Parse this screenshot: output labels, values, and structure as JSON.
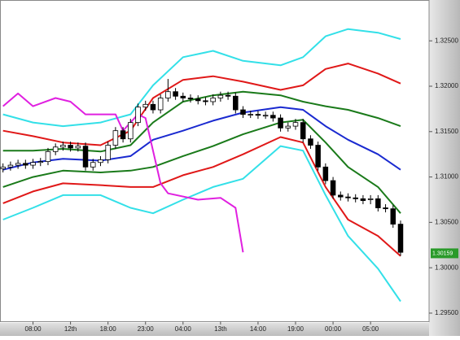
{
  "chart_data": {
    "type": "candlestick",
    "xlim": [
      -0.4,
      56.8
    ],
    "ylim": [
      1.2941,
      1.3295
    ],
    "xticks": [
      {
        "value": 4,
        "label": "08:00"
      },
      {
        "value": 9,
        "label": "12th"
      },
      {
        "value": 14,
        "label": "18:00"
      },
      {
        "value": 19,
        "label": "23:00"
      },
      {
        "value": 24,
        "label": "04:00"
      },
      {
        "value": 29,
        "label": "13th"
      },
      {
        "value": 34,
        "label": "14:00"
      },
      {
        "value": 39,
        "label": "19:00"
      },
      {
        "value": 44,
        "label": "00:00"
      },
      {
        "value": 49,
        "label": "05:00"
      }
    ],
    "yticks": [
      {
        "value": 1.325,
        "label": "1.32500"
      },
      {
        "value": 1.32,
        "label": "1.32000"
      },
      {
        "value": 1.315,
        "label": "1.31500"
      },
      {
        "value": 1.31,
        "label": "1.31000"
      },
      {
        "value": 1.305,
        "label": "1.30500"
      },
      {
        "value": 1.3,
        "label": "1.30000"
      },
      {
        "value": 1.295,
        "label": "1.29500"
      }
    ],
    "up_color": "#ffffff",
    "down_color": "#000000",
    "x": [
      0,
      1,
      2,
      3,
      4,
      5,
      6,
      7,
      8,
      9,
      10,
      11,
      12,
      13,
      14,
      15,
      16,
      17,
      18,
      19,
      20,
      21,
      22,
      23,
      24,
      25,
      26,
      27,
      28,
      29,
      30,
      31,
      32,
      33,
      34,
      35,
      36,
      37,
      38,
      39,
      40,
      41,
      42,
      43,
      44,
      45,
      46,
      47,
      48,
      49,
      50,
      51,
      52,
      53
    ],
    "open": [
      1.3109,
      1.3111,
      1.3113,
      1.3115,
      1.3113,
      1.3116,
      1.3117,
      1.3128,
      1.3133,
      1.3135,
      1.3132,
      1.3134,
      1.3111,
      1.3116,
      1.3119,
      1.3135,
      1.3151,
      1.3142,
      1.316,
      1.3177,
      1.318,
      1.3174,
      1.3187,
      1.3194,
      1.3189,
      1.3187,
      1.3186,
      1.3184,
      1.3183,
      1.3187,
      1.319,
      1.3189,
      1.3174,
      1.3169,
      1.3169,
      1.3168,
      1.3168,
      1.3165,
      1.3154,
      1.3156,
      1.316,
      1.3142,
      1.3135,
      1.3111,
      1.3096,
      1.308,
      1.3078,
      1.3077,
      1.3076,
      1.3075,
      1.3076,
      1.3066,
      1.3065,
      1.3048
    ],
    "high": [
      1.3115,
      1.3117,
      1.3119,
      1.3119,
      1.312,
      1.3121,
      1.3132,
      1.3137,
      1.3139,
      1.3139,
      1.3138,
      1.3138,
      1.312,
      1.3123,
      1.3139,
      1.3155,
      1.3155,
      1.3164,
      1.3181,
      1.3184,
      1.3184,
      1.3191,
      1.3208,
      1.3198,
      1.3193,
      1.3191,
      1.319,
      1.3188,
      1.3191,
      1.3194,
      1.3194,
      1.3193,
      1.3178,
      1.3173,
      1.3173,
      1.3172,
      1.3172,
      1.3169,
      1.316,
      1.3164,
      1.3164,
      1.3146,
      1.3139,
      1.3115,
      1.31,
      1.3084,
      1.3082,
      1.3081,
      1.308,
      1.308,
      1.308,
      1.307,
      1.3069,
      1.3052
    ],
    "low": [
      1.3105,
      1.3107,
      1.3109,
      1.3109,
      1.3109,
      1.3112,
      1.3113,
      1.3124,
      1.3129,
      1.3128,
      1.3128,
      1.3107,
      1.3107,
      1.3112,
      1.3115,
      1.3131,
      1.3138,
      1.3138,
      1.3156,
      1.3173,
      1.317,
      1.317,
      1.3183,
      1.3185,
      1.3183,
      1.3182,
      1.318,
      1.3179,
      1.3179,
      1.3183,
      1.3185,
      1.317,
      1.3165,
      1.3165,
      1.3164,
      1.3164,
      1.3161,
      1.315,
      1.315,
      1.3152,
      1.3138,
      1.3131,
      1.3107,
      1.3092,
      1.3076,
      1.3074,
      1.3073,
      1.3072,
      1.307,
      1.307,
      1.3062,
      1.3061,
      1.3044,
      1.3013
    ],
    "close": [
      1.3111,
      1.3113,
      1.3115,
      1.3113,
      1.3116,
      1.3117,
      1.3128,
      1.3133,
      1.3135,
      1.3132,
      1.3134,
      1.3111,
      1.3116,
      1.3119,
      1.3135,
      1.3151,
      1.3142,
      1.316,
      1.3177,
      1.318,
      1.3174,
      1.3187,
      1.3194,
      1.3189,
      1.3187,
      1.3186,
      1.3184,
      1.3183,
      1.3187,
      1.319,
      1.3189,
      1.3174,
      1.3169,
      1.3169,
      1.3168,
      1.3168,
      1.3165,
      1.3154,
      1.3156,
      1.316,
      1.3142,
      1.3135,
      1.3111,
      1.3096,
      1.308,
      1.3078,
      1.3077,
      1.3076,
      1.3074,
      1.3076,
      1.3066,
      1.3065,
      1.3048,
      1.3017
    ],
    "lines": [
      {
        "color": "#33e0e8",
        "x": [
          0,
          4,
          8,
          13,
          17,
          20,
          24,
          28,
          32,
          37,
          40,
          43,
          46,
          50,
          53
        ],
        "values": [
          1.3169,
          1.316,
          1.3156,
          1.316,
          1.3169,
          1.3201,
          1.3232,
          1.3239,
          1.3228,
          1.3223,
          1.3232,
          1.3255,
          1.3263,
          1.3259,
          1.3252
        ]
      },
      {
        "color": "#e01818",
        "x": [
          0,
          4,
          8,
          13,
          17,
          20,
          24,
          28,
          32,
          37,
          40,
          43,
          46,
          50,
          53
        ],
        "values": [
          1.3151,
          1.3145,
          1.3138,
          1.3135,
          1.3151,
          1.3187,
          1.3207,
          1.3211,
          1.3205,
          1.3196,
          1.3201,
          1.3219,
          1.3225,
          1.3214,
          1.3203
        ]
      },
      {
        "color": "#1a7a1a",
        "x": [
          0,
          4,
          8,
          13,
          17,
          20,
          24,
          28,
          32,
          37,
          40,
          43,
          46,
          50,
          53
        ],
        "values": [
          1.3129,
          1.3129,
          1.3131,
          1.3128,
          1.3135,
          1.316,
          1.3183,
          1.319,
          1.3194,
          1.319,
          1.3183,
          1.3178,
          1.3174,
          1.3165,
          1.3156
        ]
      },
      {
        "color": "#1a2ad0",
        "x": [
          0,
          4,
          8,
          13,
          17,
          20,
          24,
          28,
          32,
          37,
          40,
          43,
          46,
          50,
          53
        ],
        "values": [
          1.3108,
          1.3116,
          1.312,
          1.3118,
          1.3123,
          1.3141,
          1.3151,
          1.3162,
          1.3171,
          1.3177,
          1.3174,
          1.3156,
          1.3141,
          1.3125,
          1.3108
        ]
      },
      {
        "color": "#1a7a1a",
        "x": [
          0,
          4,
          8,
          13,
          17,
          20,
          24,
          28,
          32,
          37,
          40,
          43,
          46,
          50,
          53
        ],
        "values": [
          1.3089,
          1.31,
          1.3107,
          1.3105,
          1.3107,
          1.3111,
          1.3123,
          1.3134,
          1.3147,
          1.316,
          1.3163,
          1.3138,
          1.3111,
          1.3089,
          1.306
        ]
      },
      {
        "color": "#e01818",
        "x": [
          0,
          4,
          8,
          13,
          17,
          20,
          24,
          28,
          32,
          37,
          40,
          43,
          46,
          50,
          53
        ],
        "values": [
          1.3071,
          1.3084,
          1.3093,
          1.3091,
          1.3089,
          1.3089,
          1.3102,
          1.3111,
          1.3125,
          1.3144,
          1.3138,
          1.3089,
          1.3053,
          1.3035,
          1.3013
        ]
      },
      {
        "color": "#33e0e8",
        "x": [
          0,
          4,
          8,
          13,
          17,
          20,
          24,
          28,
          32,
          37,
          40,
          43,
          46,
          50,
          53
        ],
        "values": [
          1.3053,
          1.3066,
          1.308,
          1.308,
          1.3066,
          1.306,
          1.3075,
          1.3089,
          1.3098,
          1.3134,
          1.3129,
          1.308,
          1.3035,
          1.2999,
          1.2963
        ]
      },
      {
        "color": "#e020e0",
        "x": [
          0,
          2,
          4,
          7,
          9,
          11,
          15,
          16,
          18,
          19,
          21,
          22,
          26,
          29,
          31,
          32
        ],
        "values": [
          1.3178,
          1.3192,
          1.3178,
          1.3187,
          1.3183,
          1.3169,
          1.3169,
          1.3151,
          1.3169,
          1.3165,
          1.3093,
          1.3082,
          1.3075,
          1.3077,
          1.3066,
          1.3017
        ]
      }
    ],
    "last_price": 1.30159,
    "last_price_color": "#2a9a2a"
  }
}
